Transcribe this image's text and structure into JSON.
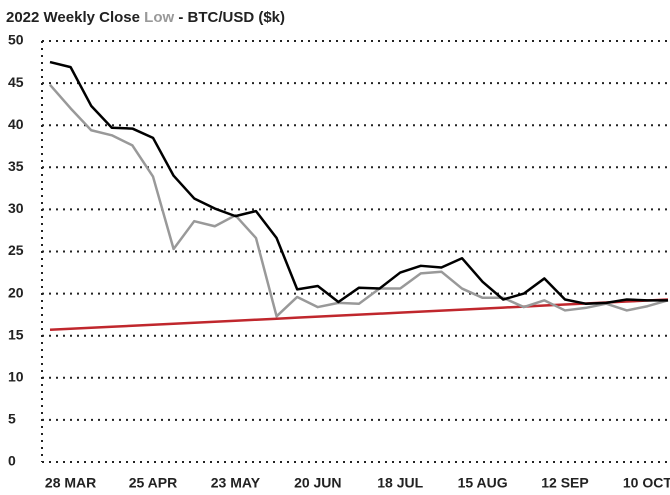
{
  "chart_data": {
    "type": "line",
    "title_prefix": "2022 Weekly",
    "title_suffix": "- BTC/USD ($k)",
    "categories": [
      null,
      "28 MAR",
      null,
      null,
      null,
      "25 APR",
      null,
      null,
      null,
      "23 MAY",
      null,
      null,
      null,
      "20 JUN",
      null,
      null,
      null,
      "18 JUL",
      null,
      null,
      null,
      "15 AUG",
      null,
      null,
      null,
      "12 SEP",
      null,
      null,
      null,
      "10 OCT",
      null
    ],
    "series": [
      {
        "name": "Close",
        "color": "#000000",
        "values": [
          47.5,
          46.9,
          42.3,
          39.7,
          39.6,
          38.5,
          34.0,
          31.3,
          30.1,
          29.2,
          29.8,
          26.6,
          20.5,
          20.9,
          19.0,
          20.7,
          20.6,
          22.5,
          23.3,
          23.1,
          24.2,
          21.4,
          19.3,
          20.0,
          21.8,
          19.3,
          18.8,
          18.9,
          19.3,
          19.2,
          19.2
        ]
      },
      {
        "name": "Low",
        "color": "#999999",
        "values": [
          44.8,
          42.0,
          39.4,
          38.8,
          37.6,
          33.9,
          25.3,
          28.6,
          28.0,
          29.3,
          26.6,
          17.3,
          19.6,
          18.4,
          18.9,
          18.8,
          20.6,
          20.6,
          22.4,
          22.6,
          20.6,
          19.5,
          19.5,
          18.4,
          19.2,
          18.0,
          18.3,
          18.8,
          18.0,
          18.5,
          19.2
        ]
      }
    ],
    "trend_line": {
      "color": "#c0272d",
      "values": [
        15.7,
        15.82,
        15.94,
        16.06,
        16.18,
        16.3,
        16.42,
        16.54,
        16.66,
        16.78,
        16.9,
        17.02,
        17.14,
        17.26,
        17.38,
        17.5,
        17.62,
        17.74,
        17.86,
        17.98,
        18.1,
        18.22,
        18.34,
        18.46,
        18.58,
        18.7,
        18.82,
        18.94,
        19.06,
        19.18,
        19.3
      ]
    },
    "ylim": [
      0,
      50
    ],
    "yticks": [
      0,
      5,
      10,
      15,
      20,
      25,
      30,
      35,
      40,
      45,
      50
    ],
    "grid": true
  }
}
